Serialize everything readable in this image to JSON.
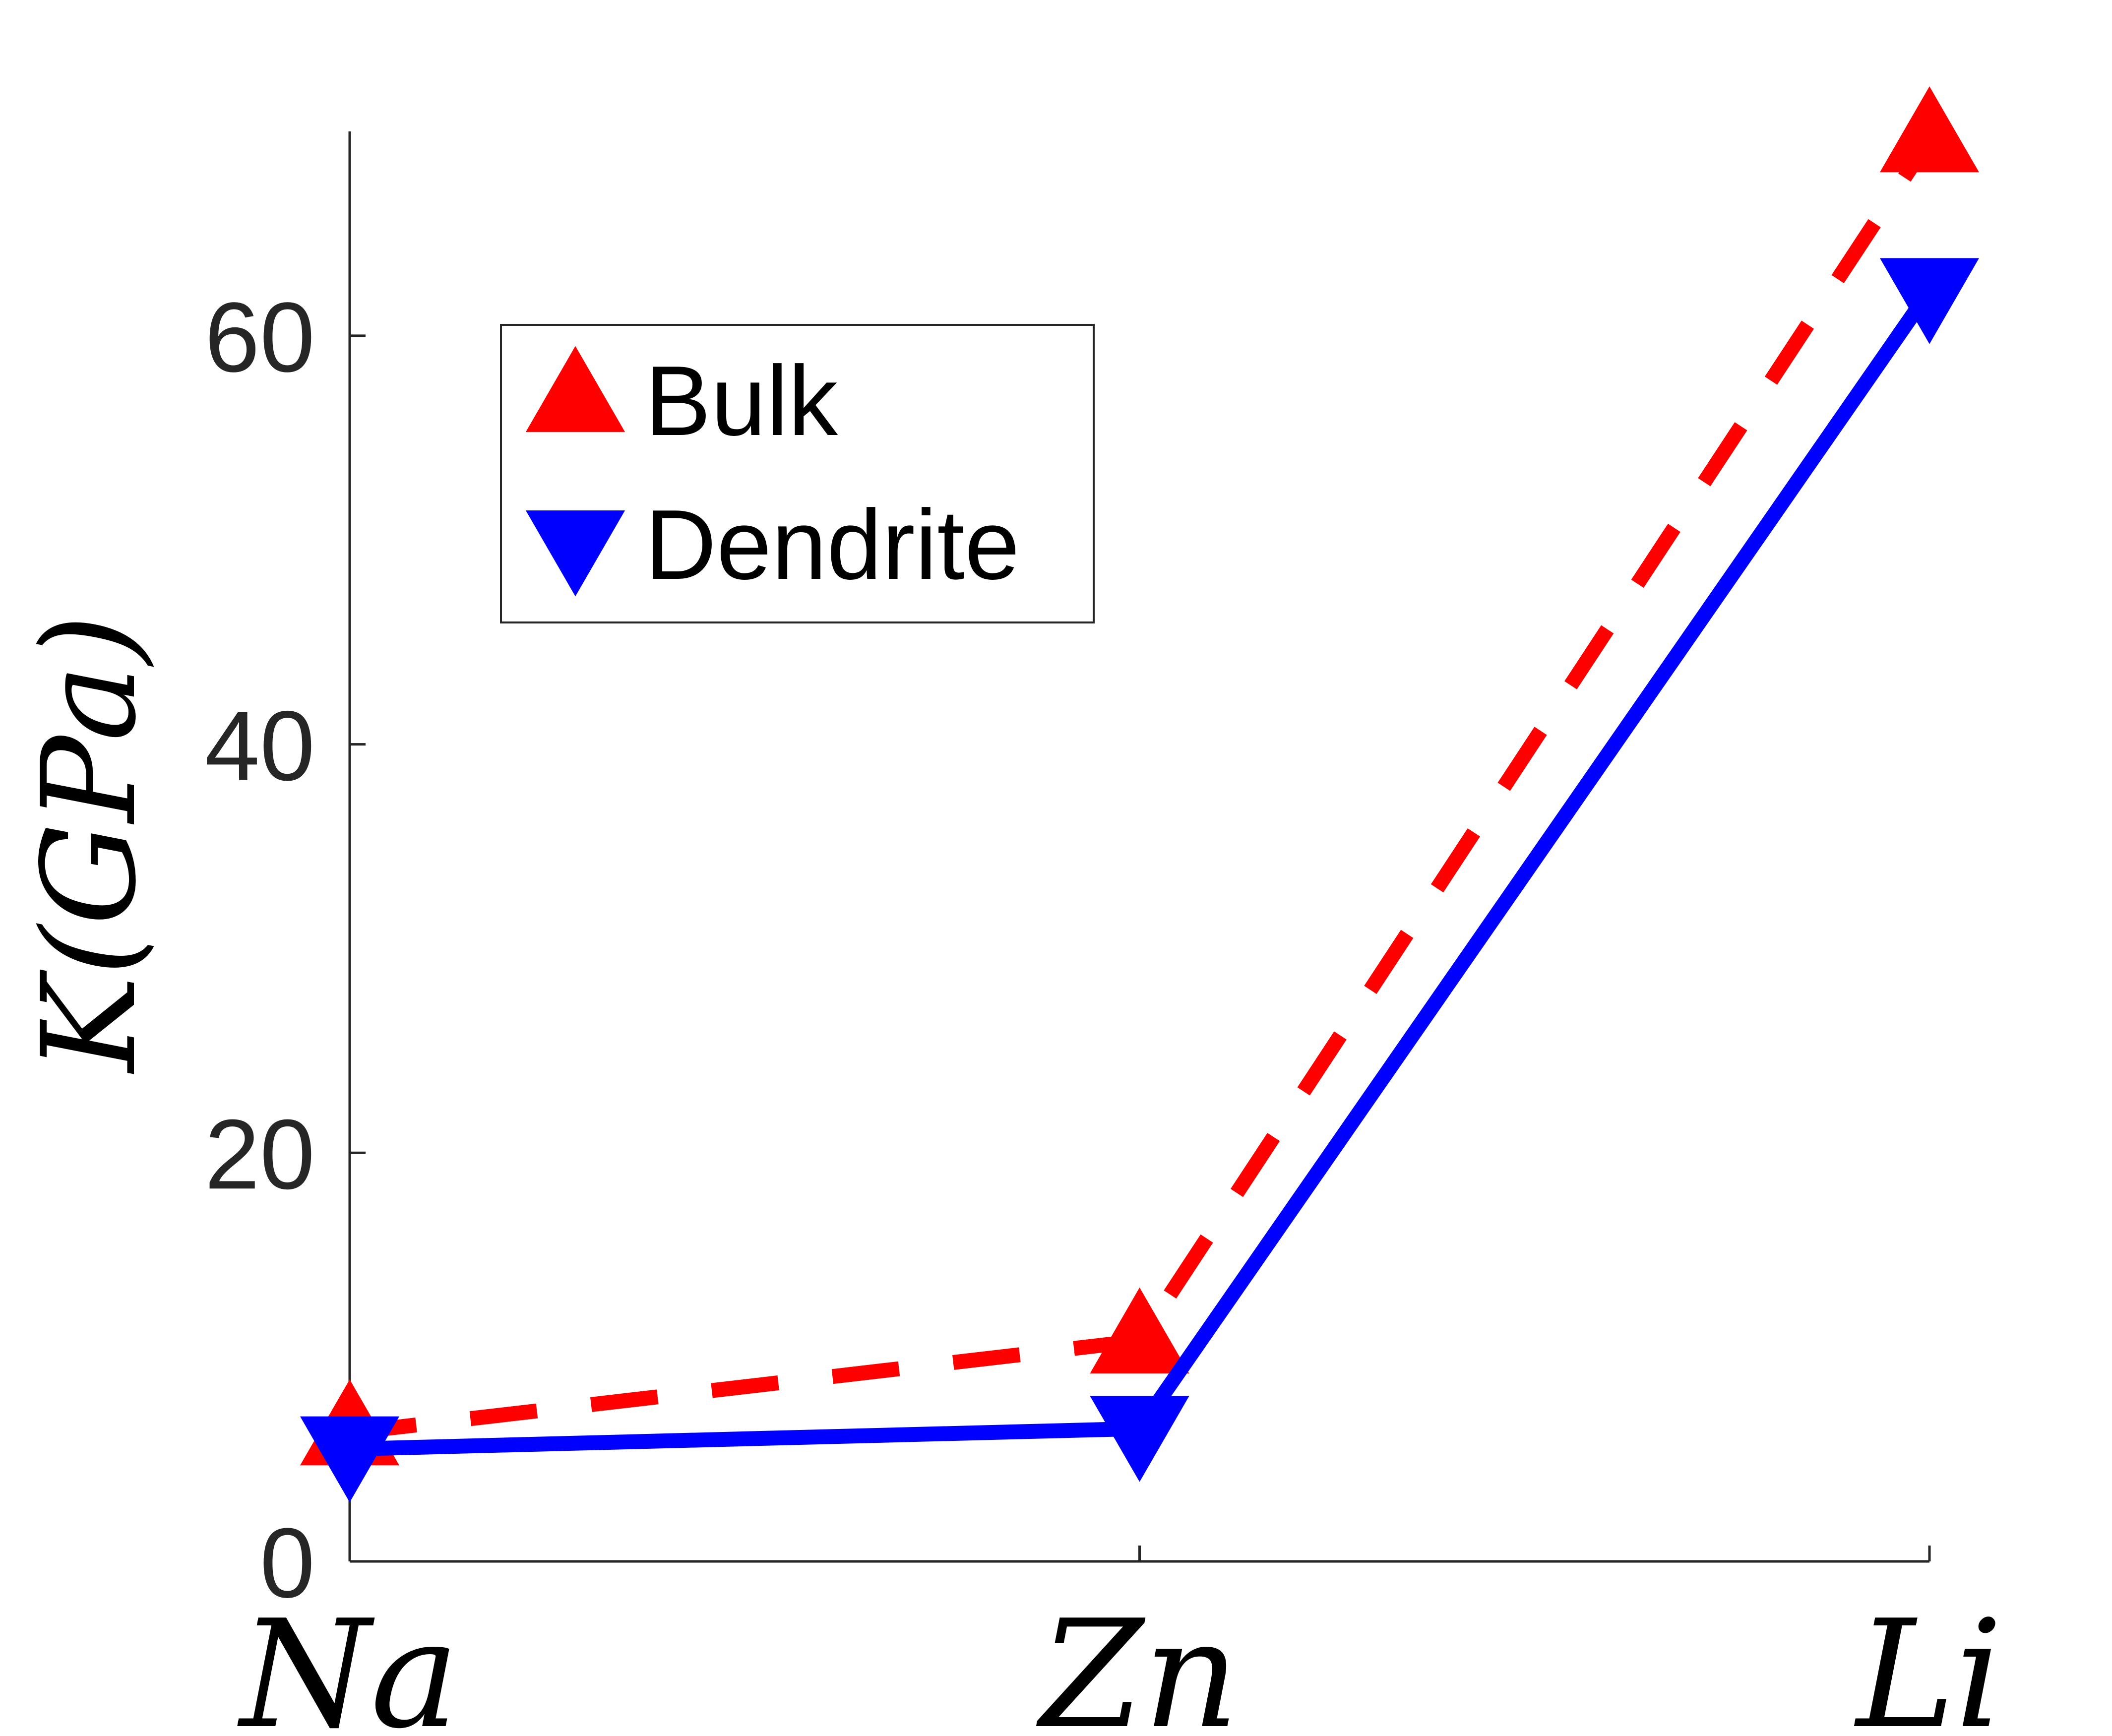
{
  "chart_data": {
    "type": "line",
    "categories": [
      "Na",
      "Zn",
      "Li"
    ],
    "ylabel": "K(GPa)",
    "ylim": [
      0,
      70
    ],
    "yticks": [
      0,
      20,
      40,
      60
    ],
    "grid": false,
    "legend_position": "top-left",
    "series": [
      {
        "name": "Bulk",
        "values": [
          6.3,
          10.8,
          69.6
        ],
        "color": "#ff0000",
        "line_style": "dashed",
        "marker": "triangle-up"
      },
      {
        "name": "Dendrite",
        "values": [
          5.5,
          6.5,
          62.2
        ],
        "color": "#0000ff",
        "line_style": "solid",
        "marker": "triangle-down"
      }
    ]
  }
}
